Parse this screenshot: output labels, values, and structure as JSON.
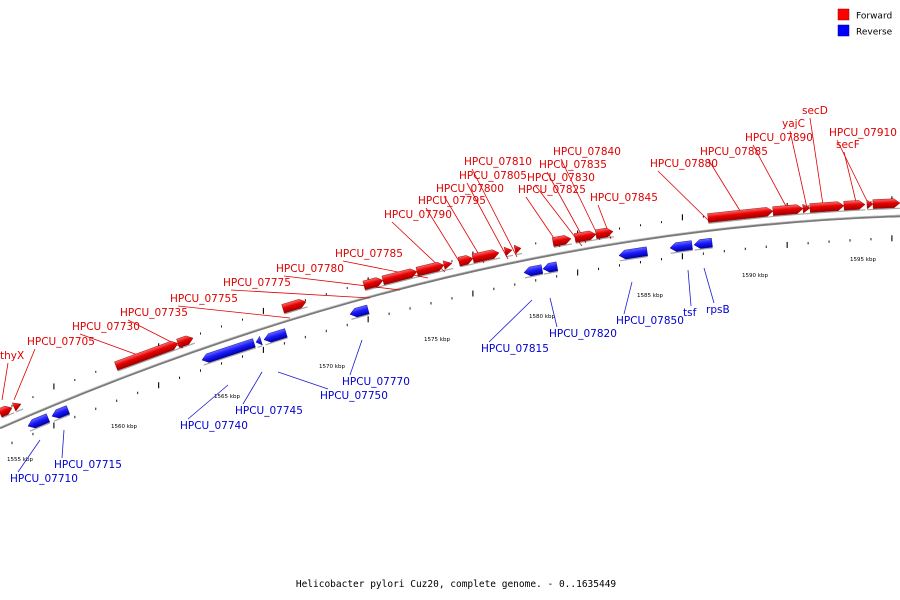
{
  "caption": "Helicobacter pylori Cuz20, complete genome. - 0..1635449",
  "legend": [
    {
      "label": "Forward",
      "color": "#ff0000"
    },
    {
      "label": "Reverse",
      "color": "#0000ff"
    }
  ],
  "colors": {
    "forward": "#e00000",
    "reverse": "#1a1aff",
    "backbone": "#808080"
  },
  "scale": {
    "start_kbp": 1553,
    "end_kbp": 1598,
    "labels": [
      "1555 kbp",
      "1560 kbp",
      "1565 kbp",
      "1570 kbp",
      "1575 kbp",
      "1580 kbp",
      "1585 kbp",
      "1590 kbp",
      "1595 kbp"
    ]
  },
  "genes_forward": [
    "thyX",
    "HPCU_07705",
    "HPCU_07730",
    "HPCU_07735",
    "HPCU_07755",
    "HPCU_07775",
    "HPCU_07780",
    "HPCU_07785",
    "HPCU_07790",
    "HPCU_07795",
    "HPCU_07800",
    "HPCU_07805",
    "HPCU_07810",
    "HPCU_07825",
    "HPCU_07830",
    "HPCU_07835",
    "HPCU_07840",
    "HPCU_07845",
    "HPCU_07880",
    "HPCU_07885",
    "HPCU_07890",
    "yajC",
    "secD",
    "secF",
    "HPCU_07910"
  ],
  "genes_reverse": [
    "HPCU_07710",
    "HPCU_07715",
    "HPCU_07740",
    "HPCU_07745",
    "HPCU_07750",
    "HPCU_07770",
    "HPCU_07815",
    "HPCU_07820",
    "HPCU_07850",
    "tsf",
    "rpsB"
  ]
}
